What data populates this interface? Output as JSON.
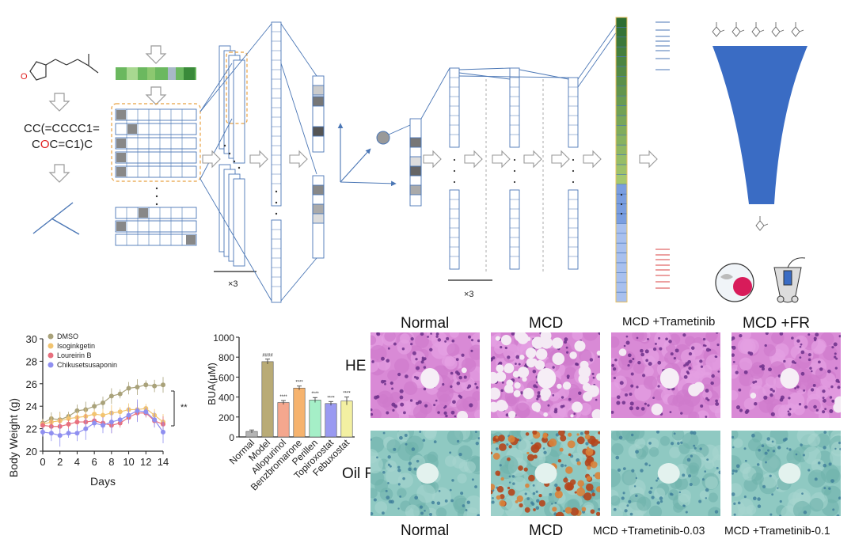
{
  "smiles": {
    "line1": "CC(=CCCC1=",
    "line2_prefix": "C",
    "line2_red": "O",
    "line2_suffix": "C=C1)C"
  },
  "repeat_label_1": "×3",
  "repeat_label_2": "×3",
  "body_weight_chart": {
    "legend": [
      "DMSO",
      "Isoginkgetin",
      "Loureirin B",
      "Chikusetsusaponin"
    ],
    "xlabel": "Days",
    "ylabel": "Body Weight (g)",
    "significance": "**",
    "x_ticks": [
      "0",
      "2",
      "4",
      "6",
      "8",
      "10",
      "12",
      "14"
    ],
    "y_ticks": [
      "20",
      "22",
      "24",
      "26",
      "28",
      "30"
    ]
  },
  "bua_chart": {
    "ylabel": "BUA(μM)",
    "categories": [
      "Normal",
      "Model",
      "Allopurinol",
      "Benzbromarone",
      "Perillen",
      "Topiroxostat",
      "Febuxostat"
    ],
    "markers": [
      "",
      "####",
      "****",
      "****",
      "****",
      "****",
      "****"
    ],
    "y_ticks": [
      "0",
      "200",
      "400",
      "600",
      "800",
      "1000"
    ]
  },
  "histology": {
    "top_columns": [
      "Normal",
      "MCD",
      "MCD +Trametinib",
      "MCD +FR"
    ],
    "bottom_columns": [
      "Normal",
      "MCD",
      "MCD +Trametinib-0.03",
      "MCD +Trametinib-0.1"
    ],
    "row_labels": [
      "HE",
      "Oil Red"
    ]
  },
  "chart_data": [
    {
      "type": "line",
      "xlabel": "Days",
      "ylabel": "Body Weight (g)",
      "x": [
        0,
        1,
        2,
        3,
        4,
        5,
        6,
        7,
        8,
        9,
        10,
        11,
        12,
        13,
        14
      ],
      "xlim": [
        0,
        14
      ],
      "ylim": [
        20,
        30
      ],
      "series": [
        {
          "name": "DMSO",
          "color": "#a9a27a",
          "values": [
            22.5,
            22.9,
            22.8,
            23.1,
            23.6,
            23.7,
            24.0,
            24.3,
            24.9,
            25.1,
            25.6,
            25.7,
            25.9,
            25.8,
            25.9
          ]
        },
        {
          "name": "Isoginkgetin",
          "color": "#f2c470",
          "values": [
            22.4,
            22.6,
            22.7,
            22.9,
            23.0,
            23.1,
            23.3,
            23.2,
            23.4,
            23.5,
            23.7,
            23.7,
            23.8,
            23.2,
            22.6
          ]
        },
        {
          "name": "Loureirin B",
          "color": "#e8707e",
          "values": [
            22.3,
            22.2,
            22.2,
            22.4,
            22.6,
            22.6,
            22.7,
            22.5,
            22.3,
            22.5,
            23.0,
            23.4,
            23.4,
            22.7,
            22.4
          ]
        },
        {
          "name": "Chikusetsusaponin",
          "color": "#8f8ff0",
          "values": [
            21.7,
            21.6,
            21.4,
            21.6,
            21.6,
            22.0,
            22.5,
            22.3,
            22.6,
            22.8,
            23.2,
            23.6,
            23.5,
            22.8,
            21.7
          ]
        }
      ]
    },
    {
      "type": "bar",
      "ylabel": "BUA(μM)",
      "categories": [
        "Normal",
        "Model",
        "Allopurinol",
        "Benzbromarone",
        "Perillen",
        "Topiroxostat",
        "Febuxostat"
      ],
      "values": [
        55,
        755,
        345,
        490,
        370,
        335,
        360
      ],
      "errors": [
        15,
        25,
        20,
        20,
        25,
        20,
        40
      ],
      "colors": [
        "#b5b5b5",
        "#b9ab76",
        "#f4a78e",
        "#f6b36e",
        "#a5efc7",
        "#9a9af1",
        "#f3f0a2"
      ],
      "ylim": [
        0,
        1000
      ]
    }
  ]
}
